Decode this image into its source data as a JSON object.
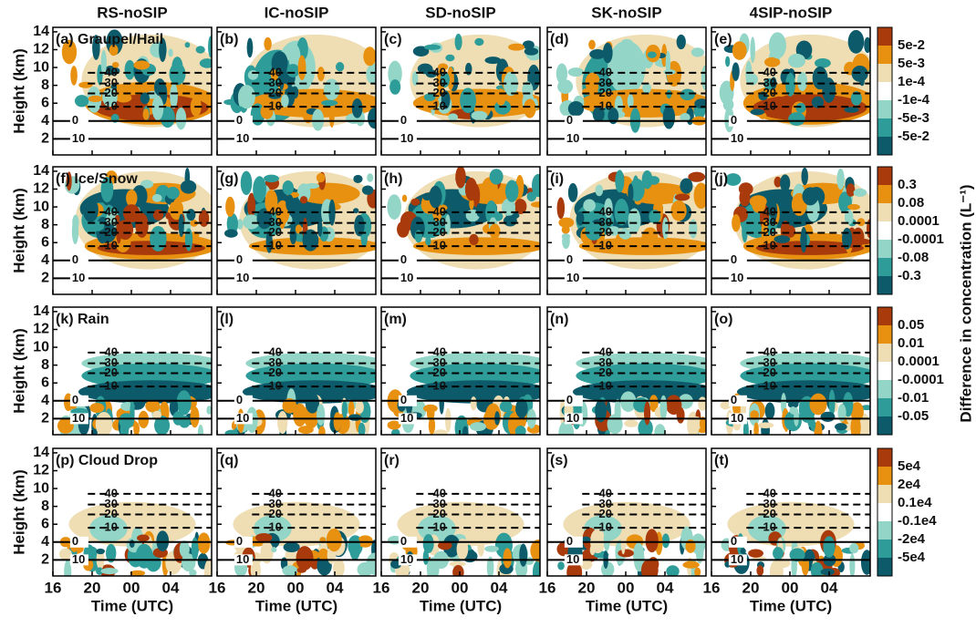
{
  "columns": [
    "RS-noSIP",
    "IC-noSIP",
    "SD-noSIP",
    "SK-noSIP",
    "4SIP-noSIP"
  ],
  "rows": [
    {
      "panels": [
        "(a) Graupel/Hail",
        "(b)",
        "(c)",
        "(d)",
        "(e)"
      ],
      "colorbar": [
        "5e-2",
        "5e-3",
        "1e-4",
        "-1e-4",
        "-5e-3",
        "-5e-2"
      ]
    },
    {
      "panels": [
        "(f) Ice/Snow",
        "(g)",
        "(h)",
        "(i)",
        "(j)"
      ],
      "colorbar": [
        "0.3",
        "0.08",
        "0.0001",
        "-0.0001",
        "-0.08",
        "-0.3"
      ]
    },
    {
      "panels": [
        "(k) Rain",
        "(l)",
        "(m)",
        "(n)",
        "(o)"
      ],
      "colorbar": [
        "0.05",
        "0.01",
        "0.0001",
        "-0.0001",
        "-0.01",
        "-0.05"
      ]
    },
    {
      "panels": [
        "(p) Cloud Drop",
        "(q)",
        "(r)",
        "(s)",
        "(t)"
      ],
      "colorbar": [
        "5e4",
        "2e4",
        "0.1e4",
        "-0.1e4",
        "-2e4",
        "-5e4"
      ]
    }
  ],
  "y_axis": {
    "label": "Height (km)",
    "ticks": [
      "2",
      "4",
      "6",
      "8",
      "10",
      "12",
      "14"
    ]
  },
  "x_axis": {
    "label": "Time (UTC)",
    "ticks": [
      "16",
      "20",
      "00",
      "04"
    ]
  },
  "isotherms": [
    "-40",
    "-30",
    "-20",
    "-10",
    "0",
    "10"
  ],
  "colorbar_title": "Difference in concentration (L⁻¹)"
}
